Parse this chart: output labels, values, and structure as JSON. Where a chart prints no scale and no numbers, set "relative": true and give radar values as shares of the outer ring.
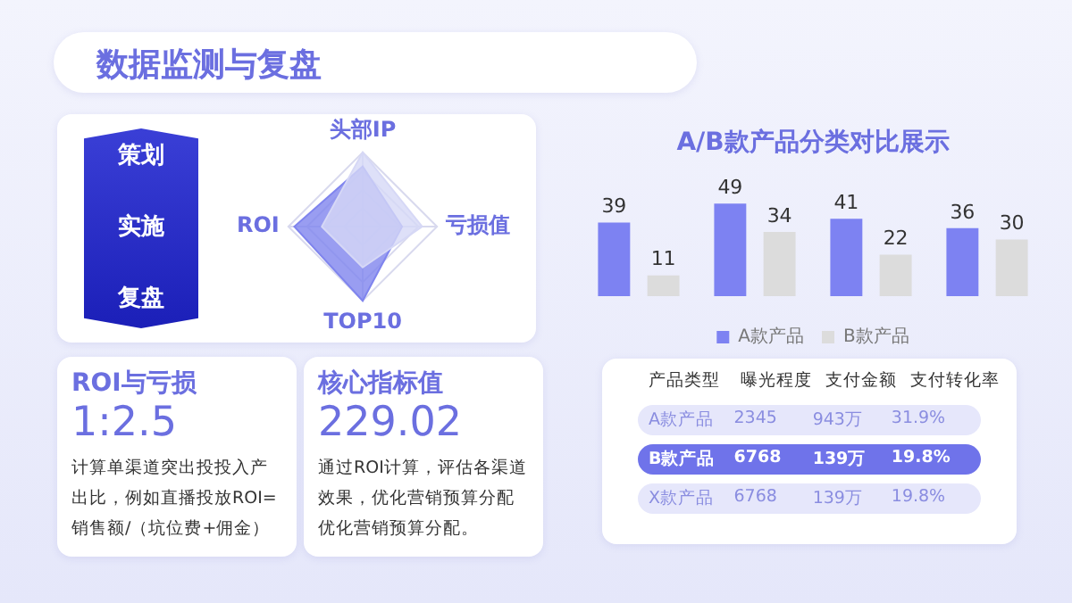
{
  "chart_data": [
    {
      "type": "other",
      "title": "数据监测与复盘"
    },
    {
      "type": "radar",
      "categories": [
        "头部IP",
        "亏损值",
        "TOP10",
        "ROI"
      ],
      "relative": true,
      "grid": true,
      "legend": false,
      "annotations": [
        "策划",
        "实施",
        "复盘"
      ],
      "series": [
        {
          "color": "#d6d8f6",
          "values": [
            1,
            0.8,
            0.55,
            0.55
          ]
        },
        {
          "color": "#7f84ee",
          "values": [
            0.81,
            0.53,
            1,
            0.92
          ]
        }
      ]
    },
    {
      "type": "bar",
      "title": "A/B款产品分类对比展示",
      "categories": [
        null,
        null,
        null,
        null
      ],
      "data_labels": true,
      "legend": "bottom",
      "tick_labels": false,
      "series": [
        {
          "name": "A款产品",
          "color": "#7d82f2",
          "values": [
            39,
            49,
            41,
            36
          ]
        },
        {
          "name": "B款产品",
          "color": "#dcdcdc",
          "values": [
            11,
            34,
            22,
            30
          ]
        }
      ]
    },
    {
      "type": "other",
      "title": "ROI与亏损",
      "subtitle": "1:2.5",
      "annotations": [
        "计算单渠道突出投投入产出比，例如直播投放ROI=销售额/（坑位费+佣金）"
      ]
    },
    {
      "type": "other",
      "title": "核心指标值",
      "subtitle": "229.02",
      "annotations": [
        "通过ROI计算，评估各渠道效果，优化营销预算分配优化营销预算分配。"
      ]
    },
    {
      "type": "other",
      "categories": [
        "产品类型",
        "曝光程度",
        "支付金额",
        "支付转化率"
      ],
      "y_categories": [
        "A款产品",
        "B款产品",
        "X款产品"
      ],
      "cell_labels": [
        [
          "2345",
          "943万",
          "31.9%"
        ],
        [
          "6768",
          "139万",
          "19.8%"
        ],
        [
          "6768",
          "139万",
          "19.8%"
        ]
      ]
    }
  ]
}
